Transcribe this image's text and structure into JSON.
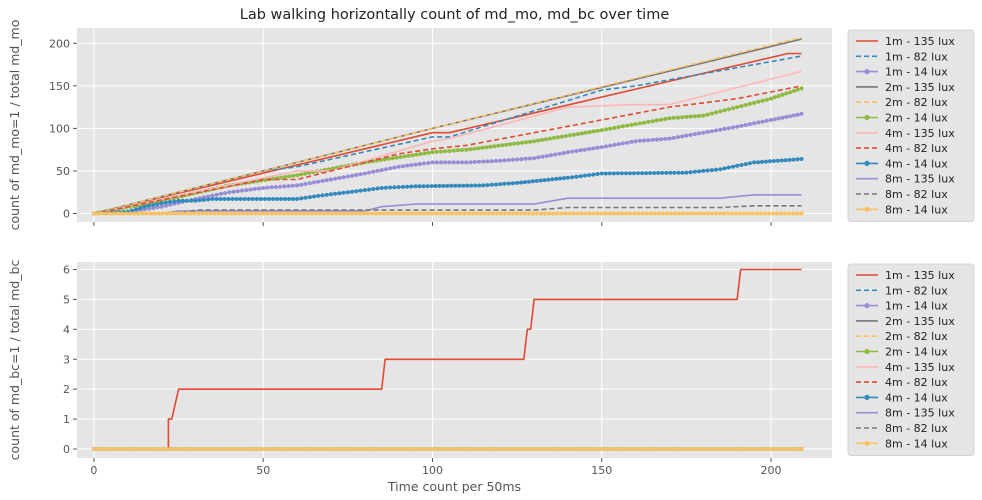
{
  "chart_data": [
    {
      "type": "line",
      "title": "Lab walking horizontally count of md_mo, md_bc over time",
      "xlabel": "",
      "ylabel": "count of md_mo=1 / total md_mo",
      "xlim": [
        -5,
        218
      ],
      "ylim": [
        -10,
        218
      ],
      "xticks": [
        0,
        50,
        100,
        150,
        200
      ],
      "yticks": [
        0,
        50,
        100,
        150,
        200
      ],
      "xtick_labels_visible": false,
      "grid": true,
      "legend_position": "right-outside",
      "series": [
        {
          "name": "1m - 135 lux",
          "color": "#E24A33",
          "style": "solid",
          "marker": "none",
          "points": [
            [
              0,
              0
            ],
            [
              100,
              95
            ],
            [
              105,
              95
            ],
            [
              205,
              188
            ],
            [
              209,
              188
            ]
          ]
        },
        {
          "name": "1m - 82 lux",
          "color": "#348ABD",
          "style": "dashed",
          "marker": "none",
          "points": [
            [
              0,
              0
            ],
            [
              50,
              50
            ],
            [
              60,
              55
            ],
            [
              100,
              90
            ],
            [
              105,
              90
            ],
            [
              150,
              145
            ],
            [
              160,
              150
            ],
            [
              209,
              185
            ]
          ]
        },
        {
          "name": "1m - 14 lux",
          "color": "#988ED5",
          "style": "solid",
          "marker": "dot",
          "points": [
            [
              0,
              0
            ],
            [
              10,
              2
            ],
            [
              20,
              8
            ],
            [
              30,
              17
            ],
            [
              40,
              25
            ],
            [
              50,
              30
            ],
            [
              60,
              33
            ],
            [
              70,
              40
            ],
            [
              80,
              47
            ],
            [
              90,
              55
            ],
            [
              100,
              60
            ],
            [
              110,
              60
            ],
            [
              120,
              62
            ],
            [
              130,
              65
            ],
            [
              140,
              72
            ],
            [
              150,
              78
            ],
            [
              160,
              85
            ],
            [
              170,
              88
            ],
            [
              180,
              95
            ],
            [
              190,
              102
            ],
            [
              200,
              110
            ],
            [
              209,
              117
            ]
          ]
        },
        {
          "name": "2m - 135 lux",
          "color": "#777777",
          "style": "solid",
          "marker": "none",
          "points": [
            [
              0,
              0
            ],
            [
              100,
              100
            ],
            [
              209,
              205
            ]
          ]
        },
        {
          "name": "2m - 82 lux",
          "color": "#FBC15E",
          "style": "dashed",
          "marker": "none",
          "points": [
            [
              0,
              0
            ],
            [
              100,
              100
            ],
            [
              209,
              207
            ]
          ]
        },
        {
          "name": "2m - 14 lux",
          "color": "#8EBA42",
          "style": "solid",
          "marker": "dot",
          "points": [
            [
              0,
              0
            ],
            [
              20,
              15
            ],
            [
              40,
              33
            ],
            [
              60,
              45
            ],
            [
              80,
              60
            ],
            [
              100,
              72
            ],
            [
              110,
              75
            ],
            [
              130,
              85
            ],
            [
              150,
              98
            ],
            [
              160,
              105
            ],
            [
              170,
              112
            ],
            [
              180,
              115
            ],
            [
              190,
              125
            ],
            [
              200,
              135
            ],
            [
              209,
              147
            ]
          ]
        },
        {
          "name": "4m - 135 lux",
          "color": "#FFB5B8",
          "style": "solid",
          "marker": "none",
          "points": [
            [
              0,
              0
            ],
            [
              60,
              50
            ],
            [
              70,
              50
            ],
            [
              100,
              85
            ],
            [
              105,
              88
            ],
            [
              140,
              125
            ],
            [
              160,
              128
            ],
            [
              170,
              128
            ],
            [
              209,
              167
            ]
          ]
        },
        {
          "name": "4m - 82 lux",
          "color": "#E24A33",
          "style": "dashed",
          "marker": "none",
          "points": [
            [
              0,
              0
            ],
            [
              50,
              40
            ],
            [
              60,
              40
            ],
            [
              80,
              60
            ],
            [
              90,
              70
            ],
            [
              100,
              76
            ],
            [
              110,
              80
            ],
            [
              130,
              95
            ],
            [
              150,
              110
            ],
            [
              170,
              125
            ],
            [
              190,
              135
            ],
            [
              209,
              150
            ]
          ]
        },
        {
          "name": "4m - 14 lux",
          "color": "#348ABD",
          "style": "solid",
          "marker": "dot",
          "points": [
            [
              0,
              0
            ],
            [
              10,
              2
            ],
            [
              15,
              8
            ],
            [
              20,
              12
            ],
            [
              25,
              15
            ],
            [
              30,
              15
            ],
            [
              35,
              17
            ],
            [
              60,
              17
            ],
            [
              65,
              20
            ],
            [
              75,
              25
            ],
            [
              85,
              30
            ],
            [
              95,
              32
            ],
            [
              115,
              33
            ],
            [
              125,
              36
            ],
            [
              140,
              42
            ],
            [
              150,
              47
            ],
            [
              175,
              48
            ],
            [
              185,
              52
            ],
            [
              195,
              60
            ],
            [
              209,
              64
            ]
          ]
        },
        {
          "name": "8m - 135 lux",
          "color": "#988ED5",
          "style": "solid",
          "marker": "none",
          "points": [
            [
              0,
              0
            ],
            [
              20,
              0
            ],
            [
              25,
              3
            ],
            [
              80,
              3
            ],
            [
              85,
              8
            ],
            [
              95,
              11
            ],
            [
              130,
              11
            ],
            [
              140,
              18
            ],
            [
              185,
              18
            ],
            [
              195,
              22
            ],
            [
              209,
              22
            ]
          ]
        },
        {
          "name": "8m - 82 lux",
          "color": "#777777",
          "style": "dashed",
          "marker": "none",
          "points": [
            [
              0,
              0
            ],
            [
              25,
              0
            ],
            [
              30,
              4
            ],
            [
              130,
              4
            ],
            [
              140,
              7
            ],
            [
              185,
              7
            ],
            [
              195,
              9
            ],
            [
              209,
              9
            ]
          ]
        },
        {
          "name": "8m - 14 lux",
          "color": "#FBC15E",
          "style": "solid",
          "marker": "dot",
          "points": [
            [
              0,
              0
            ],
            [
              50,
              0
            ],
            [
              100,
              0
            ],
            [
              150,
              0
            ],
            [
              209,
              0
            ]
          ]
        }
      ]
    },
    {
      "type": "line",
      "title": "",
      "xlabel": "Time count per 50ms",
      "ylabel": "count of md_bc=1 / total md_bc",
      "xlim": [
        -5,
        218
      ],
      "ylim": [
        -0.3,
        6.25
      ],
      "xticks": [
        0,
        50,
        100,
        150,
        200
      ],
      "yticks": [
        0,
        1,
        2,
        3,
        4,
        5,
        6
      ],
      "grid": true,
      "legend_position": "right-outside",
      "series": [
        {
          "name": "1m - 135 lux",
          "color": "#E24A33",
          "style": "solid",
          "marker": "none",
          "points": [
            [
              0,
              0
            ],
            [
              22,
              0
            ],
            [
              22,
              1
            ],
            [
              23,
              1
            ],
            [
              25,
              2
            ],
            [
              85,
              2
            ],
            [
              86,
              3
            ],
            [
              127,
              3
            ],
            [
              128,
              4
            ],
            [
              129,
              4
            ],
            [
              130,
              5
            ],
            [
              190,
              5
            ],
            [
              191,
              6
            ],
            [
              209,
              6
            ]
          ]
        },
        {
          "name": "1m - 82 lux",
          "color": "#348ABD",
          "style": "dashed",
          "marker": "none",
          "points": [
            [
              0,
              0
            ],
            [
              209,
              0
            ]
          ]
        },
        {
          "name": "1m - 14 lux",
          "color": "#988ED5",
          "style": "solid",
          "marker": "dot",
          "points": [
            [
              0,
              0
            ],
            [
              209,
              0
            ]
          ]
        },
        {
          "name": "2m - 135 lux",
          "color": "#777777",
          "style": "solid",
          "marker": "none",
          "points": [
            [
              0,
              0
            ],
            [
              209,
              0
            ]
          ]
        },
        {
          "name": "2m - 82 lux",
          "color": "#FBC15E",
          "style": "dashed",
          "marker": "none",
          "points": [
            [
              0,
              0
            ],
            [
              209,
              0
            ]
          ]
        },
        {
          "name": "2m - 14 lux",
          "color": "#8EBA42",
          "style": "solid",
          "marker": "dot",
          "points": [
            [
              0,
              0
            ],
            [
              209,
              0
            ]
          ]
        },
        {
          "name": "4m - 135 lux",
          "color": "#FFB5B8",
          "style": "solid",
          "marker": "none",
          "points": [
            [
              0,
              0
            ],
            [
              209,
              0
            ]
          ]
        },
        {
          "name": "4m - 82 lux",
          "color": "#E24A33",
          "style": "dashed",
          "marker": "none",
          "points": [
            [
              0,
              0
            ],
            [
              209,
              0
            ]
          ]
        },
        {
          "name": "4m - 14 lux",
          "color": "#348ABD",
          "style": "solid",
          "marker": "dot",
          "points": [
            [
              0,
              0
            ],
            [
              209,
              0
            ]
          ]
        },
        {
          "name": "8m - 135 lux",
          "color": "#988ED5",
          "style": "solid",
          "marker": "none",
          "points": [
            [
              0,
              0
            ],
            [
              209,
              0
            ]
          ]
        },
        {
          "name": "8m - 82 lux",
          "color": "#777777",
          "style": "dashed",
          "marker": "none",
          "points": [
            [
              0,
              0
            ],
            [
              209,
              0
            ]
          ]
        },
        {
          "name": "8m - 14 lux",
          "color": "#FBC15E",
          "style": "solid",
          "marker": "dot",
          "points": [
            [
              0,
              0
            ],
            [
              209,
              0
            ]
          ]
        }
      ]
    }
  ]
}
